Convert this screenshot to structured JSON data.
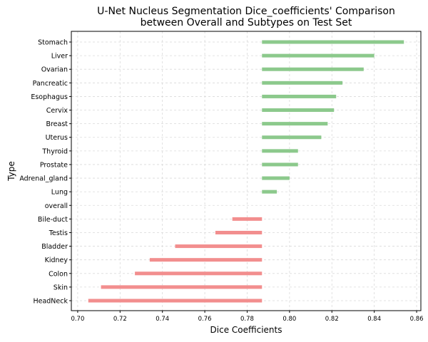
{
  "chart_data": {
    "type": "bar",
    "orientation": "horizontal",
    "title": "U-Net Nucleus Segmentation Dice_coefficients' Comparison\nbetween Overall and Subtypes on Test Set",
    "xlabel": "Dice Coefficients",
    "ylabel": "Type",
    "baseline": 0.787,
    "xlim": [
      0.697,
      0.862
    ],
    "xticks": [
      "0.70",
      "0.72",
      "0.74",
      "0.76",
      "0.78",
      "0.80",
      "0.82",
      "0.84",
      "0.86"
    ],
    "grid": true,
    "categories": [
      "Stomach",
      "Liver",
      "Ovarian",
      "Pancreatic",
      "Esophagus",
      "Cervix",
      "Breast",
      "Uterus",
      "Thyroid",
      "Prostate",
      "Adrenal_gland",
      "Lung",
      "overall",
      "Bile-duct",
      "Testis",
      "Bladder",
      "Kidney",
      "Colon",
      "Skin",
      "HeadNeck"
    ],
    "values": [
      0.854,
      0.84,
      0.835,
      0.825,
      0.822,
      0.821,
      0.818,
      0.815,
      0.804,
      0.804,
      0.8,
      0.794,
      0.787,
      0.773,
      0.765,
      0.746,
      0.734,
      0.727,
      0.711,
      0.705
    ],
    "colors": {
      "above": "#8cc98c",
      "below": "#f28e8e"
    }
  }
}
